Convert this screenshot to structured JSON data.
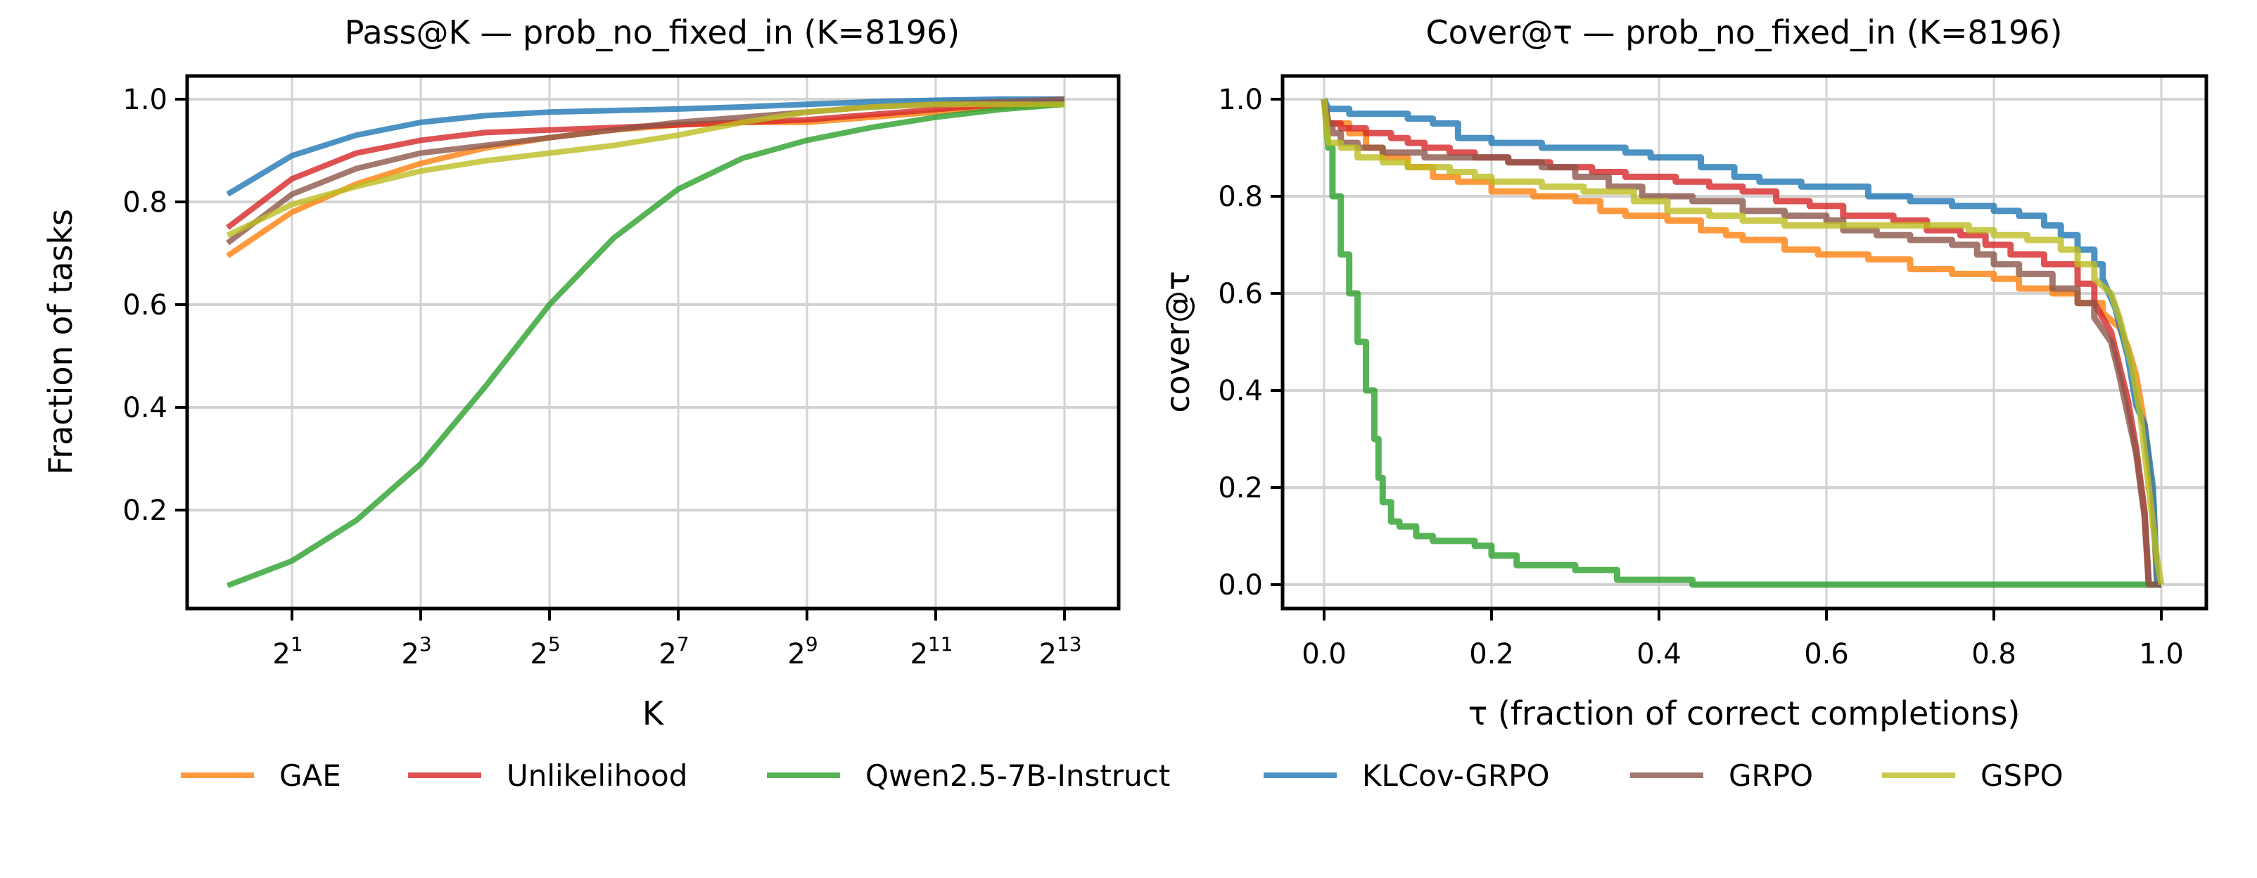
{
  "series_style": {
    "GAE": "#ff7f0e",
    "Unlikelihood": "#d62728",
    "Qwen2.5-7B-Instruct": "#2ca02c",
    "KLCov-GRPO": "#1f77b4",
    "GRPO": "#8c564b",
    "GSPO": "#bcbd22"
  },
  "legend": {
    "placement": "bottom-center",
    "entries": [
      "GAE",
      "Unlikelihood",
      "Qwen2.5-7B-Instruct",
      "KLCov-GRPO",
      "GRPO",
      "GSPO"
    ]
  },
  "chart_data": [
    {
      "type": "line",
      "title": "Pass@K — prob_no_fixed_in (K=8196)",
      "xlabel": "K",
      "ylabel": "Fraction of tasks",
      "xscale": "log2",
      "x": [
        1,
        2,
        4,
        8,
        16,
        32,
        64,
        128,
        256,
        512,
        1024,
        2048,
        4096,
        8192
      ],
      "xticks": [
        2,
        8,
        32,
        128,
        512,
        2048,
        8192
      ],
      "xtick_labels": [
        {
          "base": "2",
          "exp": "1"
        },
        {
          "base": "2",
          "exp": "3"
        },
        {
          "base": "2",
          "exp": "5"
        },
        {
          "base": "2",
          "exp": "7"
        },
        {
          "base": "2",
          "exp": "9"
        },
        {
          "base": "2",
          "exp": "11"
        },
        {
          "base": "2",
          "exp": "13"
        }
      ],
      "yticks": [
        0.2,
        0.4,
        0.6,
        0.8,
        1.0
      ],
      "ytick_labels": [
        "0.2",
        "0.4",
        "0.6",
        "0.8",
        "1.0"
      ],
      "ylim": [
        0.008,
        1.045
      ],
      "grid": true,
      "series": [
        {
          "name": "GAE",
          "values": [
            0.695,
            0.78,
            0.835,
            0.875,
            0.905,
            0.925,
            0.94,
            0.95,
            0.955,
            0.955,
            0.965,
            0.975,
            0.985,
            0.99
          ]
        },
        {
          "name": "Unlikelihood",
          "values": [
            0.75,
            0.845,
            0.895,
            0.92,
            0.935,
            0.94,
            0.945,
            0.95,
            0.955,
            0.96,
            0.97,
            0.98,
            0.99,
            0.995
          ]
        },
        {
          "name": "Qwen2.5-7B-Instruct",
          "values": [
            0.053,
            0.101,
            0.18,
            0.29,
            0.44,
            0.6,
            0.73,
            0.825,
            0.885,
            0.92,
            0.945,
            0.965,
            0.98,
            0.99
          ]
        },
        {
          "name": "KLCov-GRPO",
          "values": [
            0.815,
            0.89,
            0.93,
            0.955,
            0.968,
            0.975,
            0.978,
            0.981,
            0.985,
            0.99,
            0.995,
            0.998,
            1.0,
            1.0
          ]
        },
        {
          "name": "GRPO",
          "values": [
            0.72,
            0.815,
            0.865,
            0.895,
            0.91,
            0.925,
            0.94,
            0.955,
            0.965,
            0.975,
            0.985,
            0.99,
            0.995,
            1.0
          ]
        },
        {
          "name": "GSPO",
          "values": [
            0.735,
            0.795,
            0.83,
            0.86,
            0.88,
            0.895,
            0.91,
            0.93,
            0.955,
            0.975,
            0.985,
            0.99,
            0.99,
            0.99
          ]
        }
      ]
    },
    {
      "type": "line",
      "step": "post",
      "title": "Cover@τ — prob_no_fixed_in (K=8196)",
      "xlabel": "τ (fraction of correct completions)",
      "ylabel": "cover@τ",
      "xticks": [
        0.0,
        0.2,
        0.4,
        0.6,
        0.8,
        1.0
      ],
      "xtick_labels": [
        "0.0",
        "0.2",
        "0.4",
        "0.6",
        "0.8",
        "1.0"
      ],
      "yticks": [
        0.0,
        0.2,
        0.4,
        0.6,
        0.8,
        1.0
      ],
      "ytick_labels": [
        "0.0",
        "0.2",
        "0.4",
        "0.6",
        "0.8",
        "1.0"
      ],
      "xlim": [
        -0.05,
        1.05
      ],
      "ylim": [
        -0.05,
        1.05
      ],
      "grid": true,
      "series": [
        {
          "name": "GAE",
          "points": [
            [
              0.0,
              1.0
            ],
            [
              0.005,
              0.95
            ],
            [
              0.03,
              0.93
            ],
            [
              0.05,
              0.9
            ],
            [
              0.07,
              0.88
            ],
            [
              0.1,
              0.86
            ],
            [
              0.13,
              0.84
            ],
            [
              0.16,
              0.83
            ],
            [
              0.2,
              0.81
            ],
            [
              0.25,
              0.8
            ],
            [
              0.3,
              0.79
            ],
            [
              0.33,
              0.77
            ],
            [
              0.36,
              0.76
            ],
            [
              0.41,
              0.75
            ],
            [
              0.45,
              0.73
            ],
            [
              0.48,
              0.72
            ],
            [
              0.5,
              0.71
            ],
            [
              0.55,
              0.69
            ],
            [
              0.59,
              0.68
            ],
            [
              0.65,
              0.67
            ],
            [
              0.7,
              0.65
            ],
            [
              0.75,
              0.64
            ],
            [
              0.8,
              0.63
            ],
            [
              0.83,
              0.61
            ],
            [
              0.87,
              0.6
            ],
            [
              0.9,
              0.58
            ],
            [
              0.93,
              0.56
            ],
            [
              0.95,
              0.53
            ],
            [
              0.96,
              0.49
            ],
            [
              0.97,
              0.43
            ],
            [
              0.98,
              0.33
            ],
            [
              0.99,
              0.17
            ],
            [
              0.995,
              0.0
            ],
            [
              1.0,
              0.0
            ]
          ]
        },
        {
          "name": "Unlikelihood",
          "points": [
            [
              0.0,
              1.0
            ],
            [
              0.005,
              0.95
            ],
            [
              0.02,
              0.94
            ],
            [
              0.05,
              0.93
            ],
            [
              0.08,
              0.92
            ],
            [
              0.1,
              0.91
            ],
            [
              0.12,
              0.9
            ],
            [
              0.15,
              0.89
            ],
            [
              0.18,
              0.88
            ],
            [
              0.22,
              0.87
            ],
            [
              0.27,
              0.86
            ],
            [
              0.32,
              0.85
            ],
            [
              0.36,
              0.84
            ],
            [
              0.42,
              0.83
            ],
            [
              0.46,
              0.82
            ],
            [
              0.5,
              0.81
            ],
            [
              0.54,
              0.79
            ],
            [
              0.58,
              0.78
            ],
            [
              0.62,
              0.76
            ],
            [
              0.68,
              0.75
            ],
            [
              0.72,
              0.73
            ],
            [
              0.76,
              0.72
            ],
            [
              0.79,
              0.7
            ],
            [
              0.82,
              0.68
            ],
            [
              0.86,
              0.66
            ],
            [
              0.9,
              0.62
            ],
            [
              0.92,
              0.58
            ],
            [
              0.94,
              0.52
            ],
            [
              0.95,
              0.45
            ],
            [
              0.96,
              0.38
            ],
            [
              0.97,
              0.28
            ],
            [
              0.98,
              0.15
            ],
            [
              0.985,
              0.0
            ],
            [
              1.0,
              0.0
            ]
          ]
        },
        {
          "name": "Qwen2.5-7B-Instruct",
          "points": [
            [
              0.0,
              1.0
            ],
            [
              0.005,
              0.9
            ],
            [
              0.01,
              0.8
            ],
            [
              0.02,
              0.68
            ],
            [
              0.03,
              0.6
            ],
            [
              0.04,
              0.5
            ],
            [
              0.05,
              0.4
            ],
            [
              0.06,
              0.3
            ],
            [
              0.065,
              0.22
            ],
            [
              0.07,
              0.17
            ],
            [
              0.08,
              0.13
            ],
            [
              0.09,
              0.12
            ],
            [
              0.11,
              0.1
            ],
            [
              0.13,
              0.09
            ],
            [
              0.18,
              0.08
            ],
            [
              0.2,
              0.06
            ],
            [
              0.23,
              0.04
            ],
            [
              0.3,
              0.03
            ],
            [
              0.35,
              0.01
            ],
            [
              0.44,
              0.0
            ],
            [
              1.0,
              0.0
            ]
          ]
        },
        {
          "name": "KLCov-GRPO",
          "points": [
            [
              0.0,
              1.0
            ],
            [
              0.005,
              0.98
            ],
            [
              0.03,
              0.97
            ],
            [
              0.1,
              0.96
            ],
            [
              0.13,
              0.95
            ],
            [
              0.16,
              0.92
            ],
            [
              0.2,
              0.91
            ],
            [
              0.26,
              0.9
            ],
            [
              0.36,
              0.89
            ],
            [
              0.39,
              0.88
            ],
            [
              0.45,
              0.86
            ],
            [
              0.49,
              0.84
            ],
            [
              0.52,
              0.83
            ],
            [
              0.57,
              0.82
            ],
            [
              0.65,
              0.8
            ],
            [
              0.7,
              0.79
            ],
            [
              0.75,
              0.78
            ],
            [
              0.8,
              0.77
            ],
            [
              0.83,
              0.76
            ],
            [
              0.86,
              0.74
            ],
            [
              0.88,
              0.72
            ],
            [
              0.9,
              0.69
            ],
            [
              0.92,
              0.66
            ],
            [
              0.93,
              0.63
            ],
            [
              0.945,
              0.57
            ],
            [
              0.96,
              0.47
            ],
            [
              0.97,
              0.37
            ],
            [
              0.98,
              0.33
            ],
            [
              0.99,
              0.2
            ],
            [
              0.995,
              0.0
            ],
            [
              1.0,
              0.0
            ]
          ]
        },
        {
          "name": "GRPO",
          "points": [
            [
              0.0,
              1.0
            ],
            [
              0.005,
              0.95
            ],
            [
              0.01,
              0.93
            ],
            [
              0.02,
              0.91
            ],
            [
              0.04,
              0.9
            ],
            [
              0.07,
              0.89
            ],
            [
              0.12,
              0.88
            ],
            [
              0.22,
              0.87
            ],
            [
              0.26,
              0.86
            ],
            [
              0.3,
              0.84
            ],
            [
              0.34,
              0.82
            ],
            [
              0.38,
              0.8
            ],
            [
              0.44,
              0.79
            ],
            [
              0.5,
              0.77
            ],
            [
              0.55,
              0.76
            ],
            [
              0.6,
              0.75
            ],
            [
              0.62,
              0.73
            ],
            [
              0.66,
              0.72
            ],
            [
              0.7,
              0.71
            ],
            [
              0.75,
              0.7
            ],
            [
              0.78,
              0.68
            ],
            [
              0.8,
              0.66
            ],
            [
              0.83,
              0.64
            ],
            [
              0.87,
              0.61
            ],
            [
              0.9,
              0.58
            ],
            [
              0.92,
              0.55
            ],
            [
              0.94,
              0.5
            ],
            [
              0.95,
              0.43
            ],
            [
              0.96,
              0.35
            ],
            [
              0.97,
              0.27
            ],
            [
              0.98,
              0.14
            ],
            [
              0.985,
              0.0
            ],
            [
              1.0,
              0.0
            ]
          ]
        },
        {
          "name": "GSPO",
          "points": [
            [
              0.0,
              1.0
            ],
            [
              0.005,
              0.91
            ],
            [
              0.02,
              0.9
            ],
            [
              0.04,
              0.88
            ],
            [
              0.07,
              0.87
            ],
            [
              0.1,
              0.86
            ],
            [
              0.15,
              0.85
            ],
            [
              0.18,
              0.84
            ],
            [
              0.2,
              0.83
            ],
            [
              0.26,
              0.82
            ],
            [
              0.31,
              0.81
            ],
            [
              0.37,
              0.79
            ],
            [
              0.41,
              0.77
            ],
            [
              0.46,
              0.76
            ],
            [
              0.5,
              0.75
            ],
            [
              0.55,
              0.74
            ],
            [
              0.6,
              0.74
            ],
            [
              0.66,
              0.74
            ],
            [
              0.72,
              0.74
            ],
            [
              0.77,
              0.73
            ],
            [
              0.8,
              0.72
            ],
            [
              0.84,
              0.71
            ],
            [
              0.88,
              0.69
            ],
            [
              0.9,
              0.66
            ],
            [
              0.92,
              0.63
            ],
            [
              0.94,
              0.6
            ],
            [
              0.95,
              0.55
            ],
            [
              0.965,
              0.45
            ],
            [
              0.975,
              0.35
            ],
            [
              0.985,
              0.2
            ],
            [
              0.995,
              0.05
            ],
            [
              1.0,
              0.0
            ]
          ]
        }
      ]
    }
  ]
}
